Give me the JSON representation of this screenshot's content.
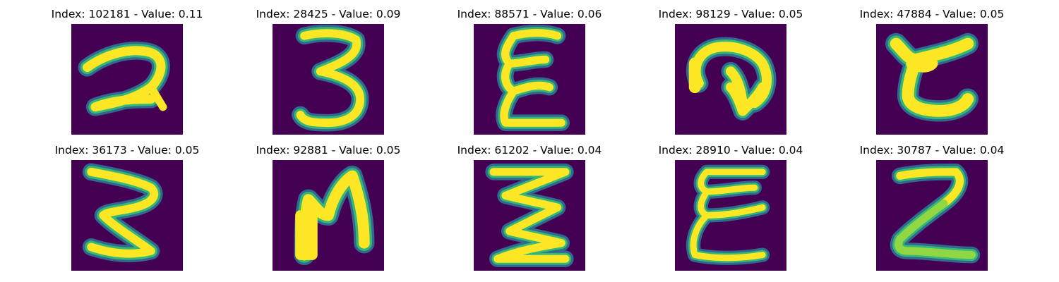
{
  "colors": {
    "background": "#440154",
    "edge_dark": "#31688e",
    "edge_mid": "#26828e",
    "edge_light": "#35b779",
    "stroke_green": "#90d743",
    "stroke": "#fde725"
  },
  "panels": [
    {
      "index": "102181",
      "value": "0.11",
      "title": "Index: 102181 - Value: 0.11",
      "glyph": "handwritten-2"
    },
    {
      "index": "28425",
      "value": "0.09",
      "title": "Index: 28425 - Value: 0.09",
      "glyph": "handwritten-3"
    },
    {
      "index": "88571",
      "value": "0.06",
      "title": "Index: 88571 - Value: 0.06",
      "glyph": "handwritten-epsilon"
    },
    {
      "index": "98129",
      "value": "0.05",
      "title": "Index: 98129 - Value: 0.05",
      "glyph": "handwritten-curl"
    },
    {
      "index": "47884",
      "value": "0.05",
      "title": "Index: 47884 - Value: 0.05",
      "glyph": "handwritten-c-shape"
    },
    {
      "index": "36173",
      "value": "0.05",
      "title": "Index: 36173 - Value: 0.05",
      "glyph": "handwritten-3-open"
    },
    {
      "index": "92881",
      "value": "0.05",
      "title": "Index: 92881 - Value: 0.05",
      "glyph": "handwritten-n"
    },
    {
      "index": "61202",
      "value": "0.04",
      "title": "Index: 61202 - Value: 0.04",
      "glyph": "handwritten-z-bar"
    },
    {
      "index": "28910",
      "value": "0.04",
      "title": "Index: 28910 - Value: 0.04",
      "glyph": "handwritten-epsilon-2"
    },
    {
      "index": "30787",
      "value": "0.04",
      "title": "Index: 30787 - Value: 0.04",
      "glyph": "handwritten-z"
    }
  ]
}
